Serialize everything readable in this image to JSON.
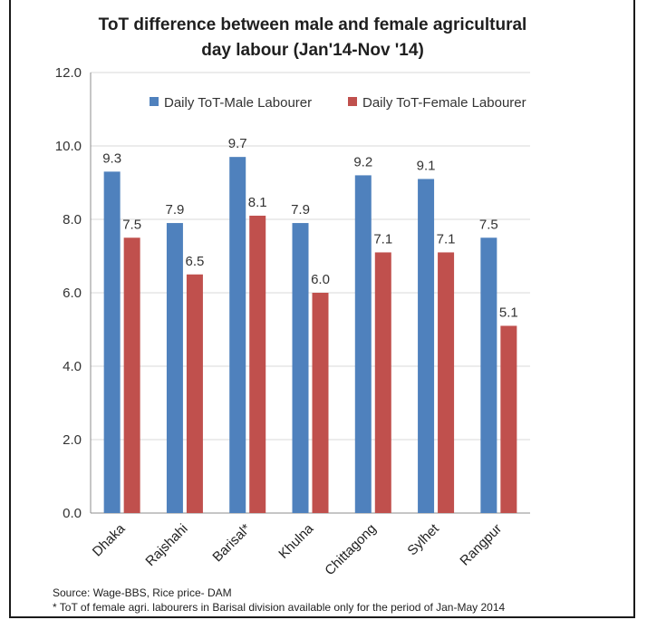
{
  "chart_data": {
    "type": "bar",
    "title_lines": [
      "ToT difference between male and female agricultural",
      "day labour (Jan'14-Nov '14)"
    ],
    "categories": [
      "Dhaka",
      "Rajshahi",
      "Barisal*",
      "Khulna",
      "Chittagong",
      "Sylhet",
      "Rangpur"
    ],
    "series": [
      {
        "name": "Daily ToT-Male Labourer",
        "color": "#4f81bd",
        "values": [
          9.3,
          7.9,
          9.7,
          7.9,
          9.2,
          9.1,
          7.5
        ],
        "labels": [
          "9.3",
          "7.9",
          "9.7",
          "7.9",
          "9.2",
          "9.1",
          "7.5"
        ]
      },
      {
        "name": "Daily ToT-Female Labourer",
        "color": "#c0504d",
        "values": [
          7.5,
          6.5,
          8.1,
          6.0,
          7.1,
          7.1,
          5.1
        ],
        "labels": [
          "7.5",
          "6.5",
          "8.1",
          "6.0",
          "7.1",
          "7.1",
          "5.1"
        ]
      }
    ],
    "y_ticks": [
      "0.0",
      "2.0",
      "4.0",
      "6.0",
      "8.0",
      "10.0",
      "12.0"
    ],
    "ylim": [
      0,
      12
    ],
    "grid": true,
    "legend_position": "top"
  },
  "notes": {
    "source": "Source: Wage-BBS, Rice price- DAM",
    "footnote": "* ToT of female agri. labourers in Barisal division available only for the period of Jan-May 2014"
  }
}
